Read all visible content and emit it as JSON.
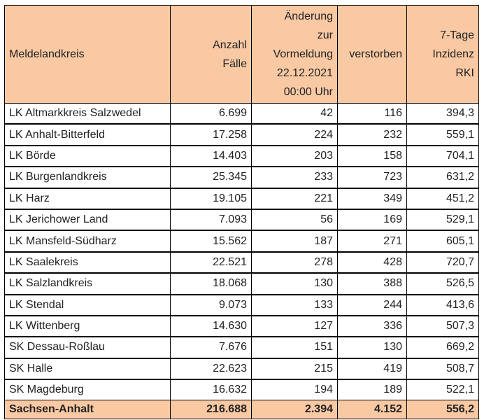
{
  "headers": {
    "col1": "Meldelandkreis",
    "col2": [
      "Anzahl",
      "Fälle"
    ],
    "col3": [
      "Änderung",
      "zur",
      "Vormeldung",
      "22.12.2021",
      "00:00 Uhr"
    ],
    "col4": "verstorben",
    "col5": [
      "7-Tage",
      "Inzidenz",
      "RKI"
    ]
  },
  "rows": [
    {
      "name": "LK Altmarkkreis Salzwedel",
      "cases": "6.699",
      "change": "42",
      "deaths": "116",
      "incidence": "394,3"
    },
    {
      "name": "LK Anhalt-Bitterfeld",
      "cases": "17.258",
      "change": "224",
      "deaths": "232",
      "incidence": "559,1"
    },
    {
      "name": "LK Börde",
      "cases": "14.403",
      "change": "203",
      "deaths": "158",
      "incidence": "704,1"
    },
    {
      "name": "LK Burgenlandkreis",
      "cases": "25.345",
      "change": "233",
      "deaths": "723",
      "incidence": "631,2"
    },
    {
      "name": "LK Harz",
      "cases": "19.105",
      "change": "221",
      "deaths": "349",
      "incidence": "451,2"
    },
    {
      "name": "LK Jerichower Land",
      "cases": "7.093",
      "change": "56",
      "deaths": "169",
      "incidence": "529,1"
    },
    {
      "name": "LK Mansfeld-Südharz",
      "cases": "15.562",
      "change": "187",
      "deaths": "271",
      "incidence": "605,1"
    },
    {
      "name": "LK Saalekreis",
      "cases": "22.521",
      "change": "278",
      "deaths": "428",
      "incidence": "720,7"
    },
    {
      "name": "LK Salzlandkreis",
      "cases": "18.068",
      "change": "130",
      "deaths": "388",
      "incidence": "526,5"
    },
    {
      "name": "LK Stendal",
      "cases": "9.073",
      "change": "133",
      "deaths": "244",
      "incidence": "413,6"
    },
    {
      "name": "LK Wittenberg",
      "cases": "14.630",
      "change": "127",
      "deaths": "336",
      "incidence": "507,3"
    },
    {
      "name": "SK Dessau-Roßlau",
      "cases": "7.676",
      "change": "151",
      "deaths": "130",
      "incidence": "669,2"
    },
    {
      "name": "SK Halle",
      "cases": "22.623",
      "change": "215",
      "deaths": "419",
      "incidence": "508,7"
    },
    {
      "name": "SK Magdeburg",
      "cases": "16.632",
      "change": "194",
      "deaths": "189",
      "incidence": "522,1"
    }
  ],
  "total": {
    "name": "Sachsen-Anhalt",
    "cases": "216.688",
    "change": "2.394",
    "deaths": "4.152",
    "incidence": "556,2"
  },
  "colors": {
    "header_bg": "#f9c9a3",
    "border": "#000000",
    "text": "#222222"
  }
}
